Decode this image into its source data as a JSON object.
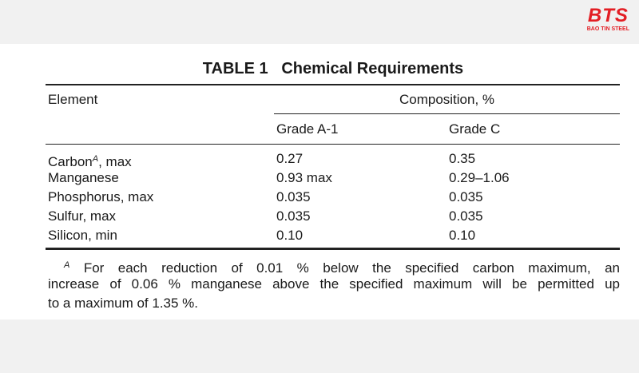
{
  "logo": {
    "mark": "BTS",
    "name": "BAO TIN STEEL"
  },
  "table": {
    "title": "TABLE 1   Chemical Requirements",
    "header": {
      "element": "Element",
      "composition": "Composition, %",
      "grades": [
        "Grade A-1",
        "Grade C"
      ]
    },
    "rows": [
      {
        "element": "Carbon",
        "note": "A",
        "suffix": ", max",
        "values": [
          "0.27",
          "0.35"
        ]
      },
      {
        "element": "Manganese",
        "values": [
          "0.93 max",
          "0.29–1.06"
        ]
      },
      {
        "element": "Phosphorus, max",
        "values": [
          "0.035",
          "0.035"
        ]
      },
      {
        "element": "Sulfur, max",
        "values": [
          "0.035",
          "0.035"
        ]
      },
      {
        "element": "Silicon, min",
        "values": [
          "0.10",
          "0.10"
        ]
      }
    ],
    "footnote": {
      "mark": "A",
      "lines": [
        "For each reduction of 0.01 % below the specified carbon maximum, an",
        "increase of 0.06 % manganese above the specified maximum will be permitted up",
        "to a maximum of 1.35 %."
      ]
    }
  }
}
